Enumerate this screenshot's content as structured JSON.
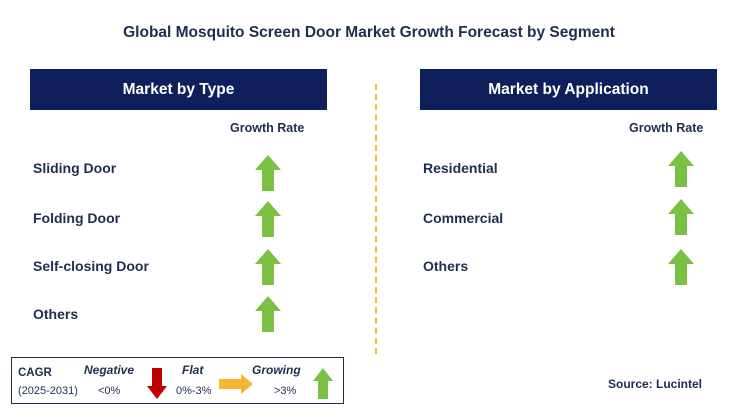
{
  "title": "Global Mosquito Screen Door Market Growth Forecast by Segment",
  "left_panel": {
    "header": "Market by Type",
    "growth_rate_label": "Growth Rate",
    "items": [
      {
        "label": "Sliding Door",
        "trend": "growing"
      },
      {
        "label": "Folding Door",
        "trend": "growing"
      },
      {
        "label": "Self-closing Door",
        "trend": "growing"
      },
      {
        "label": "Others",
        "trend": "growing"
      }
    ]
  },
  "right_panel": {
    "header": "Market by Application",
    "growth_rate_label": "Growth Rate",
    "items": [
      {
        "label": "Residential",
        "trend": "growing"
      },
      {
        "label": "Commercial",
        "trend": "growing"
      },
      {
        "label": "Others",
        "trend": "growing"
      }
    ]
  },
  "legend": {
    "cagr_label": "CAGR",
    "period": "(2025-2031)",
    "negative": {
      "label": "Negative",
      "range": "<0%"
    },
    "flat": {
      "label": "Flat",
      "range": "0%-3%"
    },
    "growing": {
      "label": "Growing",
      "range": ">3%"
    }
  },
  "source": "Source: Lucintel",
  "colors": {
    "header_bg": "#0f1f5c",
    "growing_arrow": "#7ac143",
    "negative_arrow": "#c00000",
    "flat_arrow": "#f5b731",
    "divider": "#f5b731"
  }
}
